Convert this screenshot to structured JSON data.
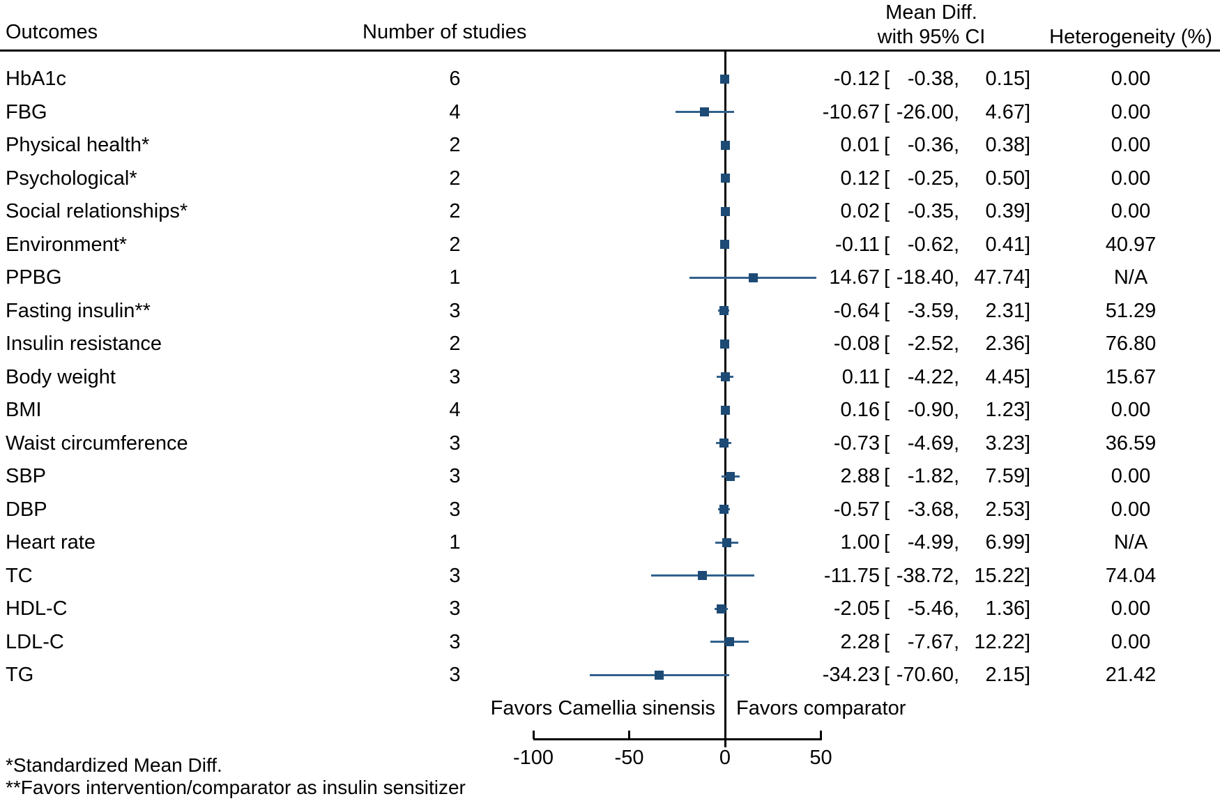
{
  "header": {
    "outcomes": "Outcomes",
    "studies": "Number of studies",
    "effect_line1": "Mean Diff.",
    "effect_line2": "with 95% CI",
    "heterogeneity": "Heterogeneity (%)"
  },
  "punct": {
    "open": "[",
    "comma": ",",
    "close": "]"
  },
  "favors": {
    "left": "Favors Camellia sinensis",
    "right": "Favors comparator"
  },
  "footnotes": {
    "line1": "*Standardized Mean Diff.",
    "line2": "**Favors intervention/comparator as insulin sensitizer"
  },
  "colors": {
    "marker": "#1d4b75",
    "ci_line": "#31618c",
    "axis": "#000000"
  },
  "chart_data": {
    "type": "forest",
    "title": "Mean Diff. with 95% CI",
    "x_axis": {
      "ticks": [
        -100,
        -50,
        0,
        50
      ],
      "tick_labels": [
        "-100",
        "-50",
        "0",
        "50"
      ],
      "min": -100,
      "max": 53,
      "zero_line": 0
    },
    "rows": [
      {
        "label": "HbA1c",
        "n": "6",
        "est": -0.12,
        "lb": -0.38,
        "ub": 0.15,
        "het": "0.00"
      },
      {
        "label": "FBG",
        "n": "4",
        "est": -10.67,
        "lb": -26.0,
        "ub": 4.67,
        "het": "0.00"
      },
      {
        "label": "Physical health*",
        "n": "2",
        "est": 0.01,
        "lb": -0.36,
        "ub": 0.38,
        "het": "0.00"
      },
      {
        "label": "Psychological*",
        "n": "2",
        "est": 0.12,
        "lb": -0.25,
        "ub": 0.5,
        "het": "0.00"
      },
      {
        "label": "Social relationships*",
        "n": "2",
        "est": 0.02,
        "lb": -0.35,
        "ub": 0.39,
        "het": "0.00"
      },
      {
        "label": "Environment*",
        "n": "2",
        "est": -0.11,
        "lb": -0.62,
        "ub": 0.41,
        "het": "40.97"
      },
      {
        "label": "PPBG",
        "n": "1",
        "est": 14.67,
        "lb": -18.4,
        "ub": 47.74,
        "het": "N/A"
      },
      {
        "label": "Fasting insulin**",
        "n": "3",
        "est": -0.64,
        "lb": -3.59,
        "ub": 2.31,
        "het": "51.29"
      },
      {
        "label": "Insulin resistance",
        "n": "2",
        "est": -0.08,
        "lb": -2.52,
        "ub": 2.36,
        "het": "76.80"
      },
      {
        "label": "Body weight",
        "n": "3",
        "est": 0.11,
        "lb": -4.22,
        "ub": 4.45,
        "het": "15.67"
      },
      {
        "label": "BMI",
        "n": "4",
        "est": 0.16,
        "lb": -0.9,
        "ub": 1.23,
        "het": "0.00"
      },
      {
        "label": "Waist circumference",
        "n": "3",
        "est": -0.73,
        "lb": -4.69,
        "ub": 3.23,
        "het": "36.59"
      },
      {
        "label": "SBP",
        "n": "3",
        "est": 2.88,
        "lb": -1.82,
        "ub": 7.59,
        "het": "0.00"
      },
      {
        "label": "DBP",
        "n": "3",
        "est": -0.57,
        "lb": -3.68,
        "ub": 2.53,
        "het": "0.00"
      },
      {
        "label": "Heart rate",
        "n": "1",
        "est": 1.0,
        "lb": -4.99,
        "ub": 6.99,
        "het": "N/A"
      },
      {
        "label": "TC",
        "n": "3",
        "est": -11.75,
        "lb": -38.72,
        "ub": 15.22,
        "het": "74.04"
      },
      {
        "label": "HDL-C",
        "n": "3",
        "est": -2.05,
        "lb": -5.46,
        "ub": 1.36,
        "het": "0.00"
      },
      {
        "label": "LDL-C",
        "n": "3",
        "est": 2.28,
        "lb": -7.67,
        "ub": 12.22,
        "het": "0.00"
      },
      {
        "label": "TG",
        "n": "3",
        "est": -34.23,
        "lb": -70.6,
        "ub": 2.15,
        "het": "21.42"
      }
    ]
  }
}
